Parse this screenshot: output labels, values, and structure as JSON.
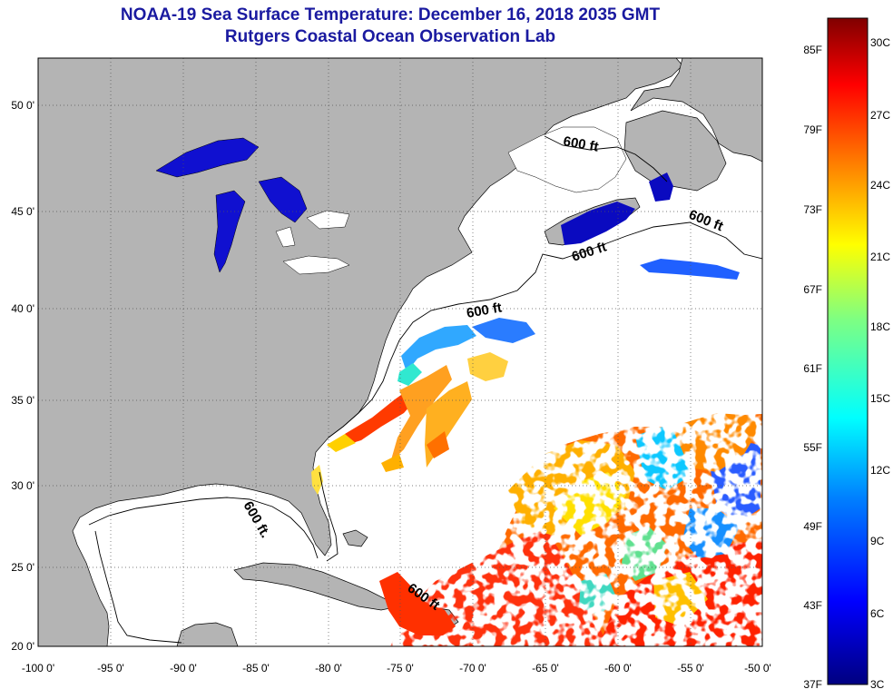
{
  "header": {
    "title": "NOAA-19 Sea Surface Temperature:  December 16, 2018 2035 GMT",
    "subtitle": "Rutgers Coastal Ocean Observation Lab"
  },
  "map": {
    "lon_ticks": [
      "-100 0'",
      "-95 0'",
      "-90 0'",
      "-85 0'",
      "-80 0'",
      "-75 0'",
      "-70 0'",
      "-65 0'",
      "-60 0'",
      "-55 0'",
      "-50 0'"
    ],
    "lat_ticks": [
      "50 0'",
      "45 0'",
      "40 0'",
      "35 0'",
      "30 0'",
      "25 0'",
      "20 0'"
    ],
    "contour_labels": [
      "600 ft",
      "600 ft",
      "600 ft",
      "600 ft",
      "600 ft.",
      "600 ft"
    ],
    "land_color": "#b4b4b4",
    "ocean_color": "#ffffff",
    "grid": "dotted"
  },
  "colorbar": {
    "fahrenheit": [
      "85F",
      "79F",
      "73F",
      "67F",
      "61F",
      "55F",
      "49F",
      "43F",
      "37F"
    ],
    "celsius": [
      "30C",
      "27C",
      "24C",
      "21C",
      "18C",
      "15C",
      "12C",
      "9C",
      "6C",
      "3C"
    ],
    "colors": [
      "#800000",
      "#ff0000",
      "#ff8000",
      "#ffff00",
      "#80ff80",
      "#00ffff",
      "#0080ff",
      "#0000ff",
      "#000080"
    ]
  }
}
